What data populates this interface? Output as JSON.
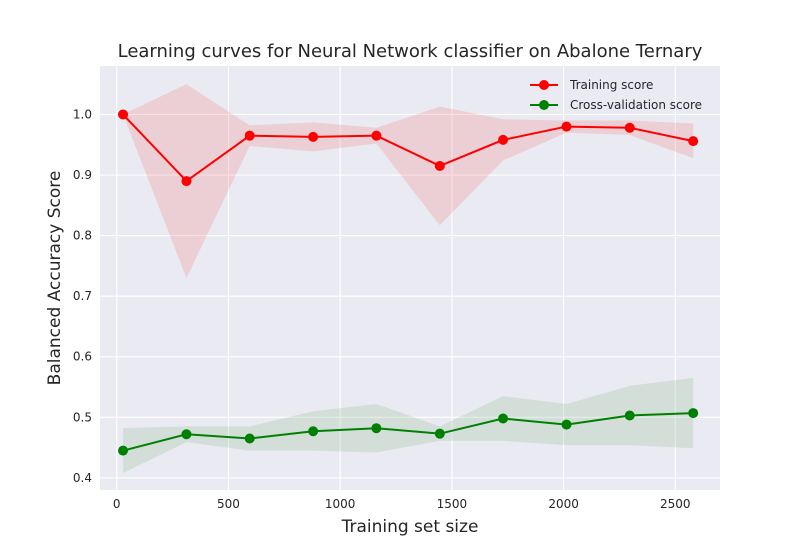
{
  "chart_data": {
    "type": "line",
    "title": "Learning curves for Neural Network classifier on Abalone Ternary",
    "xlabel": "Training set size",
    "ylabel": "Balanced Accuracy Score",
    "xlim": [
      -75,
      2700
    ],
    "ylim": [
      0.38,
      1.08
    ],
    "x_ticks": [
      0,
      500,
      1000,
      1500,
      2000,
      2500
    ],
    "x_tick_labels": [
      "0",
      "500",
      "1000",
      "1500",
      "2000",
      "2500"
    ],
    "y_ticks": [
      0.4,
      0.5,
      0.6,
      0.7,
      0.8,
      0.9,
      1.0
    ],
    "y_tick_labels": [
      "0.4",
      "0.5",
      "0.6",
      "0.7",
      "0.8",
      "0.9",
      "1.0"
    ],
    "grid": true,
    "legend_position": "top-right",
    "x": [
      28,
      312,
      595,
      879,
      1162,
      1446,
      1729,
      2013,
      2296,
      2580
    ],
    "series": [
      {
        "name": "Training score",
        "color": "#ff0000",
        "band_color": "#f08080",
        "values": [
          1.0,
          0.89,
          0.965,
          0.963,
          0.965,
          0.915,
          0.958,
          0.98,
          0.978,
          0.956
        ],
        "upper": [
          1.0,
          1.05,
          0.982,
          0.987,
          0.978,
          1.013,
          0.992,
          0.99,
          0.99,
          0.985
        ],
        "lower": [
          1.0,
          0.73,
          0.948,
          0.939,
          0.952,
          0.817,
          0.924,
          0.97,
          0.966,
          0.928
        ]
      },
      {
        "name": "Cross-validation score",
        "color": "#008000",
        "band_color": "#8fbc8f",
        "values": [
          0.445,
          0.472,
          0.465,
          0.477,
          0.482,
          0.473,
          0.498,
          0.488,
          0.503,
          0.507
        ],
        "upper": [
          0.482,
          0.485,
          0.485,
          0.51,
          0.522,
          0.485,
          0.535,
          0.522,
          0.552,
          0.565
        ],
        "lower": [
          0.408,
          0.459,
          0.445,
          0.445,
          0.442,
          0.461,
          0.461,
          0.454,
          0.454,
          0.449
        ]
      }
    ]
  }
}
